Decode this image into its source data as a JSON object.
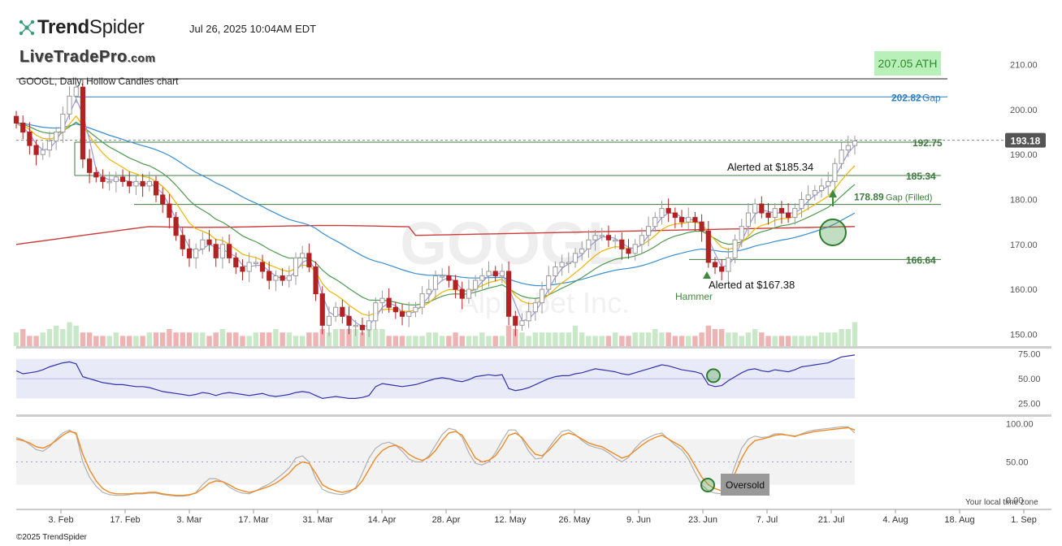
{
  "header": {
    "logo_bold": "Trend",
    "logo_light": "Spider",
    "datetime": "Jul 26, 2025 10:04AM EDT",
    "watermark_site": "LiveTradePro",
    "watermark_domain": ".com",
    "chart_subtitle": "GOOGL, Daily, Hollow Candles chart",
    "ath_label": "207.05 ATH",
    "background_watermark": "GOOGL",
    "background_watermark_sub": "Alphabet Inc."
  },
  "footer": {
    "copyright": "©2025 TrendSpider",
    "local_time_note": "Your local time zone"
  },
  "colors": {
    "up_candle": "#9a9a9a",
    "down_candle": "#b22222",
    "vol_up": "#c8e8c8",
    "vol_down": "#eeb4b4",
    "ma_fast": "#9999dd",
    "ma_yellow": "#f0b400",
    "ma_green": "#4f9a4f",
    "ma_blue": "#3a8ed0",
    "ma_red": "#cc3a3a",
    "level_green": "#3e7a3e",
    "gap_blue": "#2f7dc0",
    "rsi_line": "#3333aa",
    "rsi_band": "#e8eaf8",
    "stoch_k": "#f08a24",
    "stoch_d": "#b0b0b0",
    "stoch_band": "#f2f2f2"
  },
  "chart_data": [
    {
      "type": "candlestick",
      "title": "GOOGL, Daily, Hollow Candles chart",
      "x_tick_labels": [
        "3. Feb",
        "17. Feb",
        "3. Mar",
        "17. Mar",
        "31. Mar",
        "14. Apr",
        "28. Apr",
        "12. May",
        "26. May",
        "9. Jun",
        "23. Jun",
        "7. Jul",
        "21. Jul",
        "4. Aug",
        "18. Aug",
        "1. Sep"
      ],
      "y_ticks": [
        150,
        160,
        170,
        180,
        190,
        200,
        210
      ],
      "y_tick_labels": [
        "150.00",
        "160.00",
        "170.00",
        "180.00",
        "190.00",
        "200.00",
        "210.00"
      ],
      "ylim": [
        147,
        213
      ],
      "closes": [
        197,
        195,
        192,
        190,
        191,
        193,
        195,
        199,
        203,
        205,
        189,
        186,
        185,
        184,
        184,
        185,
        184,
        183,
        184,
        183,
        184,
        181,
        179,
        176,
        172,
        169,
        167,
        169,
        171,
        170,
        167,
        170,
        167,
        165,
        164,
        166,
        166,
        164,
        162,
        163,
        162,
        163,
        167,
        168,
        165,
        159,
        152,
        154,
        156,
        154,
        152,
        152,
        151,
        153,
        157,
        158,
        156,
        155,
        154,
        155,
        156,
        159,
        160,
        163,
        163,
        162,
        160,
        158,
        160,
        162,
        163,
        164,
        163,
        164,
        154,
        152,
        153,
        155,
        157,
        160,
        163,
        165,
        166,
        166,
        168,
        169,
        171,
        172,
        172,
        171,
        171,
        169,
        168,
        170,
        172,
        174,
        176,
        178,
        177,
        176,
        175,
        176,
        175,
        173,
        166,
        165,
        164,
        167,
        171,
        174,
        177,
        179,
        177,
        176,
        178,
        177,
        176,
        178,
        180,
        181,
        182,
        183,
        184,
        188,
        191,
        192,
        193
      ],
      "last_price_label": "193.18",
      "levels": [
        {
          "label": "192.75",
          "value": 192.75
        },
        {
          "label": "185.34",
          "value": 185.34
        },
        {
          "label": "166.64",
          "value": 166.64
        },
        {
          "label": "202.82",
          "suffix": "Gap",
          "value": 202.82
        },
        {
          "label": "178.89",
          "suffix": "Gap (Filled)",
          "value": 178.89
        },
        {
          "label": "207.05",
          "value": 207.05
        }
      ],
      "annotations": [
        {
          "text": "Alerted at $185.34"
        },
        {
          "text": "Alerted at $167.38"
        },
        {
          "text": "Hammer"
        }
      ],
      "volume": [
        4,
        5,
        3,
        3,
        4,
        5,
        6,
        5,
        7,
        6,
        4,
        4,
        3,
        3,
        3,
        4,
        3,
        3,
        3,
        3,
        4,
        4,
        4,
        5,
        4,
        4,
        4,
        4,
        4,
        3,
        4,
        5,
        4,
        4,
        3,
        3,
        4,
        4,
        4,
        5,
        4,
        4,
        3,
        3,
        4,
        4,
        5,
        4,
        5,
        5,
        5,
        5,
        4,
        6,
        5,
        5,
        3,
        3,
        3,
        3,
        3,
        3,
        4,
        4,
        3,
        3,
        4,
        3,
        3,
        3,
        4,
        3,
        3,
        3,
        6,
        5,
        4,
        3,
        4,
        4,
        4,
        4,
        4,
        4,
        6,
        4,
        3,
        3,
        3,
        3,
        4,
        3,
        3,
        4,
        4,
        4,
        5,
        4,
        4,
        3,
        3,
        3,
        3,
        4,
        6,
        5,
        5,
        4,
        4,
        3,
        4,
        5,
        4,
        3,
        3,
        3,
        3,
        3,
        3,
        3,
        3,
        4,
        4,
        4,
        5,
        5,
        7
      ]
    },
    {
      "type": "line",
      "name": "RSI",
      "y_tick_labels": [
        "75.00",
        "50.00",
        "25.00"
      ],
      "ylim": [
        18,
        78
      ],
      "values": [
        58,
        55,
        56,
        57,
        59,
        62,
        64,
        66,
        67,
        65,
        52,
        50,
        48,
        46,
        45,
        44,
        44,
        43,
        42,
        42,
        41,
        39,
        37,
        36,
        35,
        34,
        33,
        34,
        36,
        35,
        33,
        35,
        36,
        35,
        34,
        33,
        34,
        35,
        33,
        32,
        33,
        34,
        36,
        37,
        36,
        33,
        30,
        31,
        32,
        31,
        30,
        30,
        31,
        33,
        42,
        45,
        44,
        43,
        42,
        43,
        44,
        46,
        48,
        50,
        51,
        50,
        48,
        47,
        49,
        52,
        53,
        54,
        53,
        54,
        40,
        38,
        39,
        41,
        44,
        47,
        50,
        52,
        53,
        53,
        55,
        56,
        58,
        60,
        59,
        58,
        57,
        55,
        54,
        56,
        58,
        60,
        62,
        64,
        63,
        61,
        59,
        58,
        57,
        55,
        44,
        42,
        43,
        48,
        52,
        56,
        59,
        60,
        58,
        57,
        59,
        58,
        57,
        59,
        62,
        63,
        64,
        65,
        66,
        69,
        72,
        73,
        74
      ]
    },
    {
      "type": "line",
      "name": "Stochastic",
      "y_tick_labels": [
        "100.00",
        "50.00",
        "0.00"
      ],
      "ylim": [
        -5,
        105
      ],
      "series": [
        {
          "values": [
            80,
            78,
            75,
            70,
            68,
            72,
            78,
            85,
            90,
            88,
            60,
            40,
            25,
            15,
            10,
            8,
            8,
            8,
            9,
            9,
            10,
            10,
            8,
            7,
            6,
            6,
            7,
            9,
            15,
            22,
            25,
            24,
            20,
            15,
            12,
            10,
            12,
            15,
            18,
            22,
            28,
            35,
            45,
            50,
            48,
            35,
            20,
            15,
            12,
            10,
            12,
            15,
            25,
            40,
            55,
            65,
            70,
            72,
            68,
            60,
            55,
            52,
            56,
            65,
            78,
            88,
            90,
            85,
            70,
            55,
            50,
            52,
            58,
            70,
            85,
            88,
            82,
            70,
            60,
            58,
            65,
            75,
            85,
            88,
            85,
            80,
            75,
            72,
            70,
            65,
            60,
            55,
            58,
            65,
            72,
            78,
            82,
            85,
            80,
            75,
            70,
            60,
            45,
            30,
            20,
            15,
            12,
            18,
            35,
            55,
            70,
            78,
            80,
            82,
            85,
            86,
            85,
            84,
            86,
            88,
            90,
            91,
            92,
            93,
            94,
            95,
            92
          ]
        },
        {
          "values": [
            82,
            79,
            73,
            66,
            64,
            70,
            80,
            88,
            92,
            86,
            50,
            30,
            18,
            10,
            7,
            6,
            6,
            7,
            8,
            8,
            9,
            9,
            7,
            6,
            5,
            5,
            6,
            10,
            20,
            28,
            28,
            24,
            17,
            12,
            9,
            8,
            12,
            17,
            21,
            27,
            34,
            42,
            55,
            58,
            50,
            28,
            14,
            10,
            8,
            7,
            10,
            16,
            35,
            55,
            68,
            74,
            76,
            72,
            64,
            54,
            50,
            50,
            58,
            72,
            86,
            94,
            92,
            82,
            62,
            48,
            46,
            50,
            62,
            78,
            92,
            92,
            80,
            64,
            54,
            55,
            68,
            80,
            90,
            92,
            86,
            78,
            72,
            69,
            67,
            62,
            55,
            50,
            56,
            68,
            77,
            82,
            86,
            88,
            80,
            72,
            66,
            54,
            36,
            20,
            12,
            9,
            8,
            20,
            45,
            68,
            80,
            84,
            82,
            83,
            87,
            87,
            85,
            83,
            87,
            90,
            92,
            93,
            94,
            95,
            96,
            96,
            88
          ]
        }
      ],
      "callouts": [
        "Oversold"
      ]
    }
  ]
}
